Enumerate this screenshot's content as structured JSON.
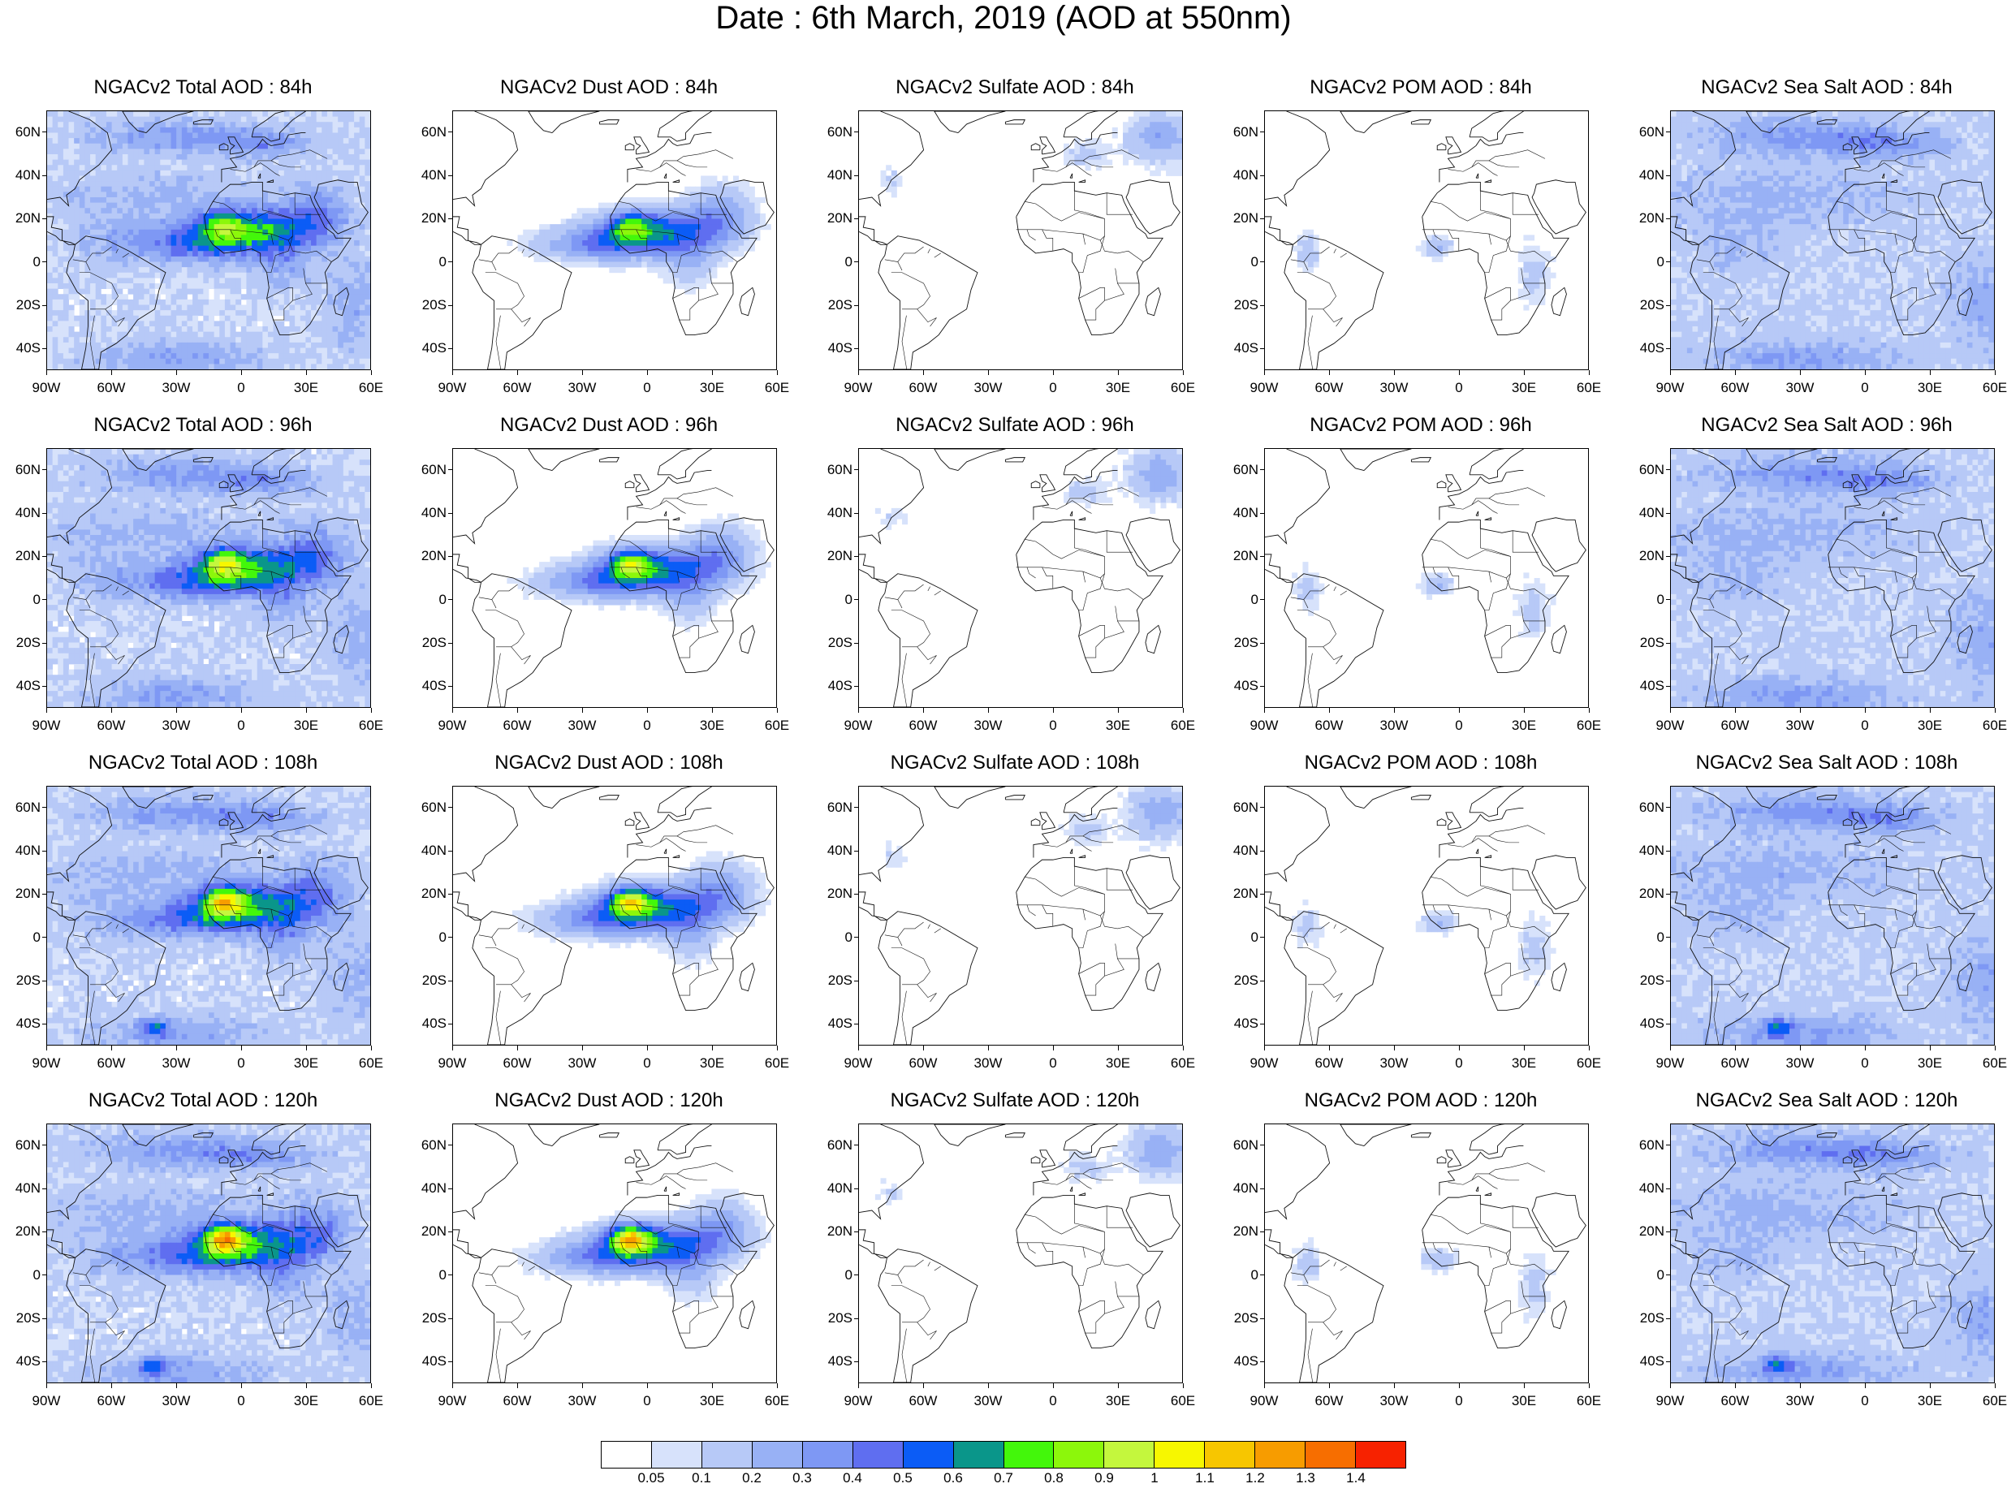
{
  "title": "Date : 6th March, 2019 (AOD at 550nm)",
  "panels": [
    [
      "NGACv2 Total AOD : 84h",
      "NGACv2 Dust AOD : 84h",
      "NGACv2 Sulfate AOD : 84h",
      "NGACv2 POM AOD : 84h",
      "NGACv2 Sea Salt AOD : 84h"
    ],
    [
      "NGACv2 Total AOD : 96h",
      "NGACv2 Dust AOD : 96h",
      "NGACv2 Sulfate AOD : 96h",
      "NGACv2 POM AOD : 96h",
      "NGACv2 Sea Salt AOD : 96h"
    ],
    [
      "NGACv2 Total AOD : 108h",
      "NGACv2 Dust AOD : 108h",
      "NGACv2 Sulfate AOD : 108h",
      "NGACv2 POM AOD : 108h",
      "NGACv2 Sea Salt AOD : 108h"
    ],
    [
      "NGACv2 Total AOD : 120h",
      "NGACv2 Dust AOD : 120h",
      "NGACv2 Sulfate AOD : 120h",
      "NGACv2 POM AOD : 120h",
      "NGACv2 Sea Salt  AOD : 120h"
    ]
  ],
  "lat_labels": [
    "60N",
    "40N",
    "20N",
    "0",
    "20S",
    "40S"
  ],
  "lat_values": [
    60,
    40,
    20,
    0,
    -20,
    -40
  ],
  "lon_labels": [
    "90W",
    "60W",
    "30W",
    "0",
    "30E",
    "60E"
  ],
  "lon_values": [
    -90,
    -60,
    -30,
    0,
    30,
    60
  ],
  "map_extent": {
    "lon": [
      -90,
      60
    ],
    "lat": [
      -50,
      70
    ]
  },
  "colorbar": {
    "colors": [
      "#ffffff",
      "#d7e2fb",
      "#b7c9f7",
      "#98b1f5",
      "#7e98f4",
      "#5f6ef0",
      "#0b5cf6",
      "#0a968a",
      "#43f70b",
      "#8cf70b",
      "#c4f73d",
      "#f7f700",
      "#f7c600",
      "#f79c00",
      "#f76e00",
      "#f72200"
    ],
    "labels": [
      "0.05",
      "0.1",
      "0.2",
      "0.3",
      "0.4",
      "0.5",
      "0.6",
      "0.7",
      "0.8",
      "0.9",
      "1",
      "1.1",
      "1.2",
      "1.3",
      "1.4"
    ]
  }
}
